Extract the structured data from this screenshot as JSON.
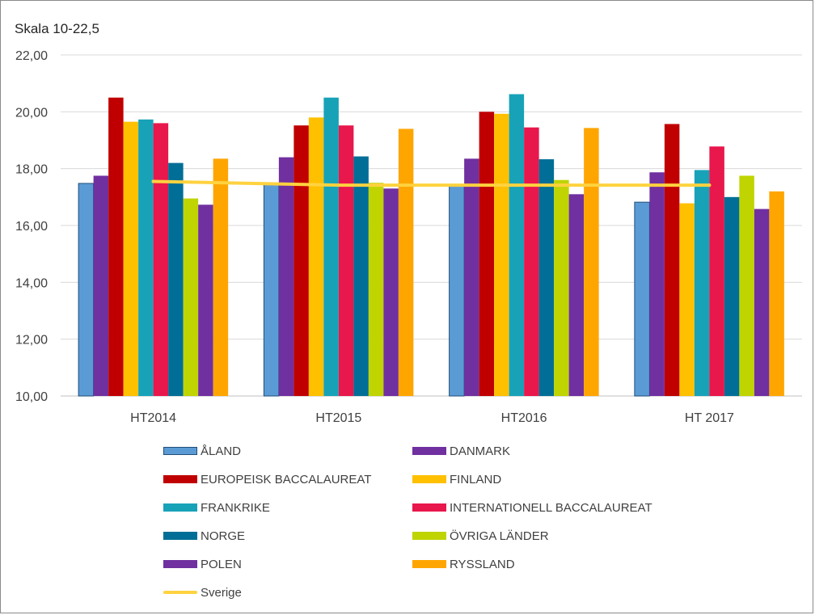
{
  "chart_data": {
    "type": "bar",
    "title": "",
    "subtitle": "Skala 10-22,5",
    "xlabel": "",
    "ylabel": "",
    "ylim": [
      10,
      22
    ],
    "yticks": [
      "10,00",
      "12,00",
      "14,00",
      "16,00",
      "18,00",
      "20,00",
      "22,00"
    ],
    "grid": true,
    "legend_position": "bottom",
    "categories": [
      "HT2014",
      "HT2015",
      "HT2016",
      "HT 2017"
    ],
    "series": [
      {
        "name": "ÅLAND",
        "color": "#5B9BD5",
        "values": [
          17.48,
          17.5,
          17.4,
          16.82
        ]
      },
      {
        "name": "DANMARK",
        "color": "#7030A0",
        "values": [
          17.75,
          18.4,
          18.35,
          17.87
        ]
      },
      {
        "name": "EUROPEISK BACCALAUREAT",
        "color": "#C00000",
        "values": [
          20.5,
          19.52,
          20.0,
          19.57
        ]
      },
      {
        "name": "FINLAND",
        "color": "#FFC000",
        "values": [
          19.65,
          19.8,
          19.93,
          16.78
        ]
      },
      {
        "name": "FRANKRIKE",
        "color": "#17A2B8",
        "values": [
          19.73,
          20.5,
          20.62,
          17.95
        ]
      },
      {
        "name": "INTERNATIONELL BACCALAUREAT",
        "color": "#E8174C",
        "values": [
          19.6,
          19.52,
          19.45,
          18.78
        ]
      },
      {
        "name": "NORGE",
        "color": "#006E96",
        "values": [
          18.2,
          18.43,
          18.33,
          17.0
        ]
      },
      {
        "name": "ÖVRIGA LÄNDER",
        "color": "#BFD400",
        "values": [
          16.95,
          17.5,
          17.6,
          17.75
        ]
      },
      {
        "name": "POLEN",
        "color": "#7030A0",
        "values": [
          16.73,
          17.3,
          17.1,
          16.58
        ]
      },
      {
        "name": "RYSSLAND",
        "color": "#FFA500",
        "values": [
          18.35,
          19.4,
          19.43,
          17.2
        ]
      }
    ],
    "line_series": [
      {
        "name": "Sverige",
        "color": "#FFD23F",
        "values": [
          17.55,
          17.42,
          17.42,
          17.42
        ]
      }
    ]
  }
}
